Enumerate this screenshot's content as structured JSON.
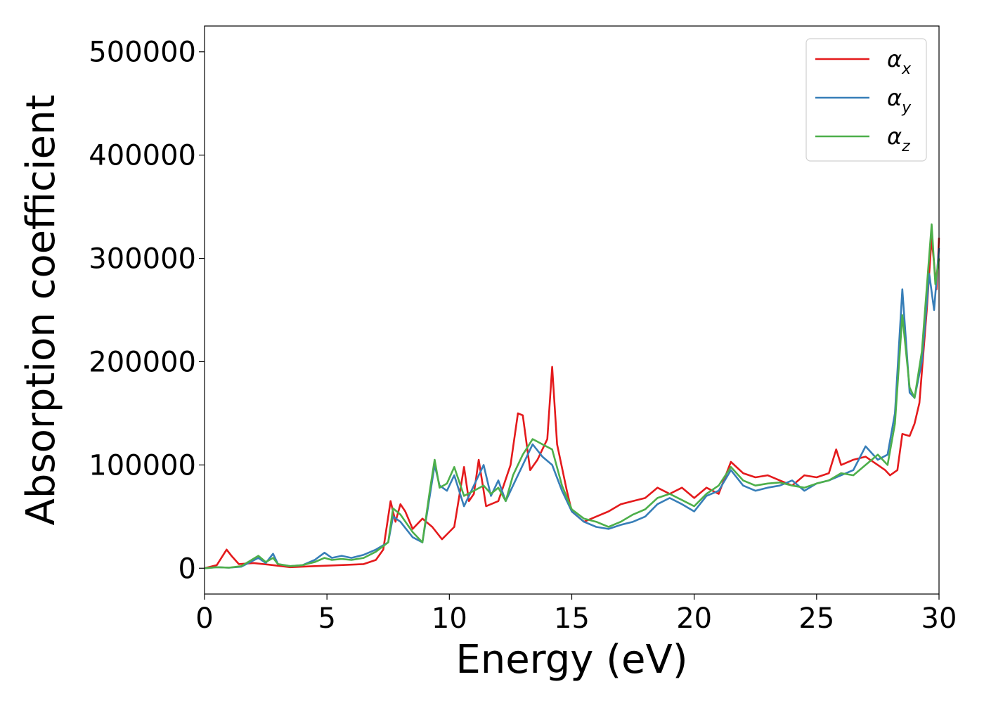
{
  "chart_data": {
    "type": "line",
    "xlabel": "Energy (eV)",
    "ylabel": "Absorption coefficient",
    "xlim": [
      0,
      30
    ],
    "ylim": [
      -25000,
      525000
    ],
    "xticks": [
      "0",
      "5",
      "10",
      "15",
      "20",
      "25",
      "30"
    ],
    "yticks": [
      "0",
      "100000",
      "200000",
      "300000",
      "400000",
      "500000"
    ],
    "legend_position": "top-right",
    "grid": false,
    "series": [
      {
        "name": "α",
        "subscript": "x",
        "color": "#e41a1c",
        "x": [
          0,
          0.5,
          0.9,
          1.1,
          1.4,
          2.0,
          2.8,
          3.5,
          4.5,
          5.5,
          6.5,
          7.0,
          7.3,
          7.6,
          7.8,
          8.0,
          8.2,
          8.5,
          8.9,
          9.3,
          9.7,
          10.2,
          10.6,
          10.8,
          11.0,
          11.2,
          11.5,
          12.0,
          12.5,
          12.8,
          13.0,
          13.3,
          13.6,
          14.0,
          14.2,
          14.4,
          14.8,
          15.0,
          15.5,
          16.0,
          16.5,
          17.0,
          17.5,
          18.0,
          18.5,
          19.0,
          19.5,
          20.0,
          20.5,
          21.0,
          21.5,
          22.0,
          22.5,
          23.0,
          23.5,
          24.0,
          24.5,
          25.0,
          25.5,
          25.8,
          26.0,
          26.5,
          27.0,
          27.5,
          27.8,
          28.0,
          28.3,
          28.5,
          28.8,
          29.0,
          29.2,
          29.5,
          29.7,
          29.9,
          30.0
        ],
        "y": [
          0,
          3000,
          18000,
          12000,
          4000,
          5000,
          3000,
          1000,
          2000,
          3000,
          4000,
          8000,
          18000,
          65000,
          45000,
          62000,
          55000,
          38000,
          48000,
          40000,
          28000,
          40000,
          98000,
          65000,
          72000,
          105000,
          60000,
          65000,
          100000,
          150000,
          148000,
          95000,
          105000,
          125000,
          195000,
          120000,
          75000,
          55000,
          45000,
          50000,
          55000,
          62000,
          65000,
          68000,
          78000,
          72000,
          78000,
          68000,
          78000,
          72000,
          103000,
          92000,
          88000,
          90000,
          85000,
          80000,
          90000,
          88000,
          92000,
          115000,
          100000,
          105000,
          108000,
          100000,
          95000,
          90000,
          95000,
          130000,
          128000,
          140000,
          160000,
          250000,
          320000,
          270000,
          320000
        ]
      },
      {
        "name": "α",
        "subscript": "y",
        "color": "#377eb8",
        "x": [
          0,
          0.5,
          1.0,
          1.5,
          2.2,
          2.5,
          2.8,
          3.0,
          3.5,
          4.0,
          4.5,
          4.9,
          5.2,
          5.6,
          6.0,
          6.5,
          7.0,
          7.5,
          7.7,
          8.0,
          8.5,
          8.9,
          9.2,
          9.4,
          9.6,
          9.9,
          10.2,
          10.6,
          11.0,
          11.4,
          11.7,
          12.0,
          12.3,
          12.6,
          13.0,
          13.4,
          13.8,
          14.2,
          14.6,
          15.0,
          15.5,
          16.0,
          16.5,
          17.0,
          17.5,
          18.0,
          18.5,
          19.0,
          19.5,
          20.0,
          20.5,
          21.0,
          21.5,
          22.0,
          22.5,
          23.0,
          23.5,
          24.0,
          24.5,
          25.0,
          25.5,
          26.0,
          26.5,
          27.0,
          27.5,
          27.9,
          28.2,
          28.5,
          28.8,
          29.0,
          29.3,
          29.6,
          29.8,
          30.0
        ],
        "y": [
          0,
          1000,
          500,
          1500,
          10000,
          5000,
          14000,
          4000,
          2000,
          3000,
          8000,
          15000,
          10000,
          12000,
          10000,
          13000,
          18000,
          25000,
          50000,
          45000,
          30000,
          25000,
          70000,
          100000,
          80000,
          75000,
          90000,
          60000,
          80000,
          100000,
          70000,
          85000,
          65000,
          80000,
          100000,
          120000,
          108000,
          100000,
          75000,
          55000,
          45000,
          40000,
          38000,
          42000,
          45000,
          50000,
          62000,
          68000,
          62000,
          55000,
          70000,
          75000,
          95000,
          80000,
          75000,
          78000,
          80000,
          85000,
          75000,
          82000,
          85000,
          90000,
          95000,
          118000,
          105000,
          110000,
          150000,
          270000,
          170000,
          165000,
          200000,
          285000,
          250000,
          310000
        ]
      },
      {
        "name": "α",
        "subscript": "z",
        "color": "#4daf4a",
        "x": [
          0,
          0.5,
          1.0,
          1.5,
          2.2,
          2.5,
          2.8,
          3.0,
          3.5,
          4.0,
          4.5,
          4.9,
          5.2,
          5.6,
          6.0,
          6.5,
          7.0,
          7.5,
          7.7,
          8.0,
          8.5,
          8.9,
          9.2,
          9.4,
          9.6,
          9.9,
          10.2,
          10.6,
          11.0,
          11.4,
          11.7,
          12.0,
          12.3,
          12.6,
          13.0,
          13.4,
          13.8,
          14.2,
          14.6,
          15.0,
          15.5,
          16.0,
          16.5,
          17.0,
          17.5,
          18.0,
          18.5,
          19.0,
          19.5,
          20.0,
          20.5,
          21.0,
          21.5,
          22.0,
          22.5,
          23.0,
          23.5,
          24.0,
          24.5,
          25.0,
          25.5,
          26.0,
          26.5,
          27.0,
          27.5,
          27.9,
          28.2,
          28.5,
          28.8,
          29.0,
          29.3,
          29.7,
          29.85,
          30.0
        ],
        "y": [
          0,
          1000,
          500,
          2000,
          12000,
          6000,
          10000,
          4000,
          2000,
          3000,
          6000,
          10000,
          8000,
          9000,
          8000,
          10000,
          16000,
          25000,
          58000,
          52000,
          35000,
          25000,
          75000,
          105000,
          78000,
          82000,
          98000,
          70000,
          75000,
          80000,
          72000,
          78000,
          65000,
          90000,
          110000,
          125000,
          120000,
          115000,
          80000,
          57000,
          48000,
          45000,
          40000,
          45000,
          52000,
          57000,
          68000,
          72000,
          66000,
          60000,
          72000,
          80000,
          98000,
          85000,
          80000,
          82000,
          83000,
          80000,
          78000,
          82000,
          85000,
          92000,
          90000,
          100000,
          110000,
          100000,
          140000,
          245000,
          175000,
          165000,
          210000,
          333000,
          275000,
          300000
        ]
      }
    ]
  }
}
